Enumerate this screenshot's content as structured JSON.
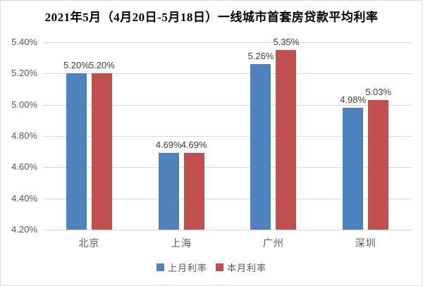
{
  "chart_data": {
    "type": "bar",
    "title": "2021年5月（4月20日-5月18日）一线城市首套房贷款平均利率",
    "categories": [
      "北京",
      "上海",
      "广州",
      "深圳"
    ],
    "series": [
      {
        "name": "上月利率",
        "color": "#4F81BD",
        "values": [
          5.2,
          4.69,
          5.26,
          4.98
        ],
        "labels": [
          "5.20%",
          "4.69%",
          "5.26%",
          "4.98%"
        ]
      },
      {
        "name": "本月利率",
        "color": "#C0504D",
        "values": [
          5.2,
          4.69,
          5.35,
          5.03
        ],
        "labels": [
          "5.20%",
          "4.69%",
          "5.35%",
          "5.03%"
        ]
      }
    ],
    "ylim": [
      4.2,
      5.4
    ],
    "ytick_step": 0.2,
    "yticks": [
      "5.40%",
      "5.20%",
      "5.00%",
      "4.80%",
      "4.60%",
      "4.40%",
      "4.20%"
    ],
    "xlabel": "",
    "ylabel": "",
    "grid": true,
    "gridline_color": "#d9d9d9",
    "legend_position": "bottom",
    "axis_label_color": "#595959",
    "data_label_color": "#404040",
    "background_color": "#ffffff",
    "border_color": "#d9d9d9"
  }
}
